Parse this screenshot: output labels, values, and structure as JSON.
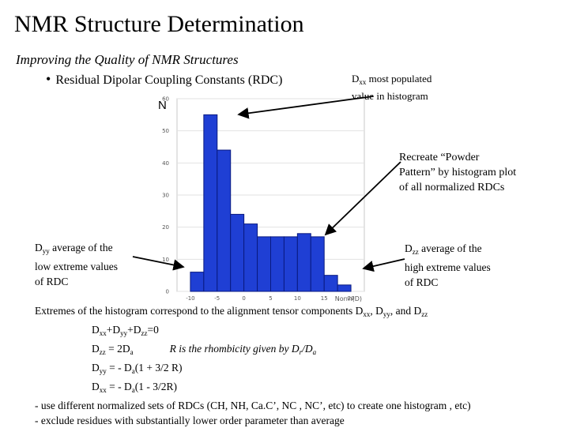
{
  "title": "NMR Structure Determination",
  "subtitle": "Improving the Quality of NMR Structures",
  "bullet": "Residual Dipolar Coupling Constants (RDC)",
  "notes": {
    "dxx": {
      "main": "D",
      "sub": "xx",
      "rest": " most populated",
      "line2": "value in histogram"
    },
    "powder": [
      "Recreate “Powder",
      "Pattern” by histogram plot",
      "of all normalized RDCs"
    ],
    "dyy": {
      "main": "D",
      "sub": "yy",
      "rest": " average of the",
      "line2": "low extreme values",
      "line3": "of RDC"
    },
    "dzz": {
      "main": "D",
      "sub": "zz",
      "rest": " average of the",
      "line2": "high extreme values",
      "line3": "of RDC"
    }
  },
  "bottom": {
    "line1": {
      "a": "Extremes of the histogram correspond to the alignment tensor components D",
      "s1": "xx",
      "b": ", D",
      "s2": "yy",
      "c": ", and D",
      "s3": "zz"
    },
    "line2": {
      "a": "D",
      "s1": "xx",
      "b": "+D",
      "s2": "yy",
      "c": "+D",
      "s3": "zz",
      "d": "=0"
    },
    "line3": {
      "a": "D",
      "s1": "zz",
      "b": " = 2D",
      "s2": "a",
      "r1": "R is the rhombicity given by D",
      "rs1": "r",
      "r2": "/D",
      "rs2": "a"
    },
    "line4": {
      "a": "D",
      "s1": "yy",
      "b": " = - D",
      "s2": "a",
      "c": "(1 + 3/2 R)"
    },
    "line5": {
      "a": "D",
      "s1": "xx",
      "b": " = - D",
      "s2": "a",
      "c": "(1 - 3/2R)"
    },
    "line6": "- use different normalized sets of RDCs (CH, NH, Ca.C’, NC , NC’, etc) to create one histogram , etc)",
    "line7": "- exclude residues with substantially lower order parameter than average"
  },
  "colors": {
    "bar_fill": "#1f3fd4",
    "bar_stroke": "#0a1a80",
    "arrow": "#000000"
  },
  "chart_data": {
    "type": "bar",
    "ylabel": "N",
    "xlabel": "Norm(D)",
    "x_ticks": [
      "-10",
      "-5",
      "0",
      "5",
      "10",
      "15",
      "20"
    ],
    "y_ticks": [
      "0",
      "10",
      "20",
      "30",
      "40",
      "50",
      "60"
    ],
    "ylim": [
      0,
      60
    ],
    "xlim": [
      -12.5,
      22.5
    ],
    "bin_width": 2.5,
    "bins": [
      {
        "x0": -10,
        "value": 6
      },
      {
        "x0": -7.5,
        "value": 55
      },
      {
        "x0": -5,
        "value": 44
      },
      {
        "x0": -2.5,
        "value": 24
      },
      {
        "x0": 0,
        "value": 21
      },
      {
        "x0": 2.5,
        "value": 17
      },
      {
        "x0": 5,
        "value": 17
      },
      {
        "x0": 7.5,
        "value": 17
      },
      {
        "x0": 10,
        "value": 18
      },
      {
        "x0": 12.5,
        "value": 17
      },
      {
        "x0": 15,
        "value": 5
      },
      {
        "x0": 17.5,
        "value": 2
      }
    ]
  }
}
